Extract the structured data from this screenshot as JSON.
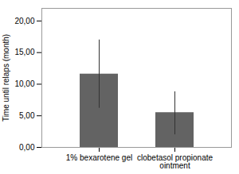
{
  "chart_data": {
    "type": "bar",
    "categories": [
      "1% bexarotene gel",
      "clobetasol propionate\nointment"
    ],
    "values": [
      11.6,
      5.5
    ],
    "error_upper": [
      17.0,
      8.8
    ],
    "error_lower": [
      6.2,
      2.0
    ],
    "color": "#636363",
    "ylabel": "Time until relaps (month)",
    "ylim": [
      0,
      22.0
    ],
    "yticks": [
      {
        "value": 0.0,
        "label": "0,00"
      },
      {
        "value": 5.0,
        "label": "5,00"
      },
      {
        "value": 10.0,
        "label": "10,00"
      },
      {
        "value": 15.0,
        "label": "15,00"
      },
      {
        "value": 20.0,
        "label": "20,00"
      }
    ],
    "grid": false
  }
}
